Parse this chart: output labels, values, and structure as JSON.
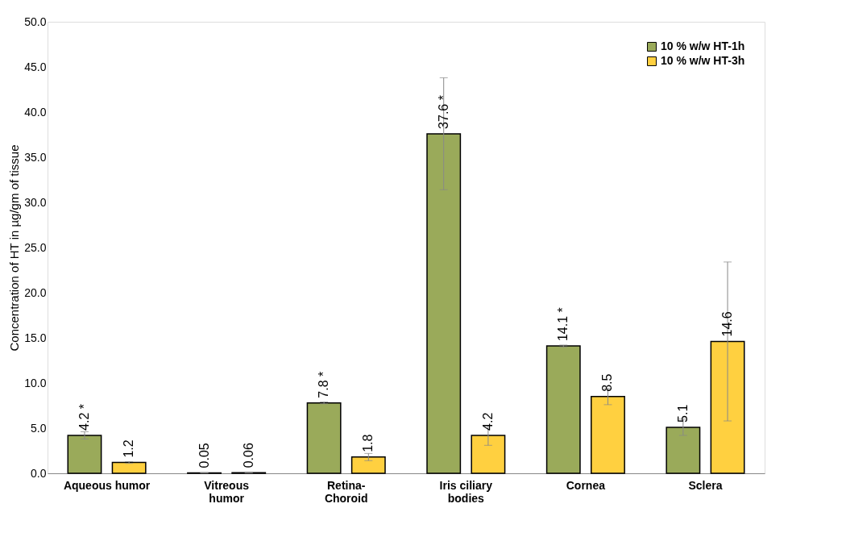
{
  "chart_data": {
    "type": "bar",
    "ylabel": "Concentration of HT in µg/gm of tissue",
    "categories": [
      "Aqueous humor",
      "Vitreous humor",
      "Retina-Choroid",
      "Iris ciliary bodies",
      "Cornea",
      "Sclera"
    ],
    "series": [
      {
        "name": "10 % w/w HT-1h",
        "color": "#9aaa5a",
        "values": [
          4.2,
          0.05,
          7.8,
          37.6,
          14.1,
          5.1
        ],
        "errors": [
          0.4,
          0,
          0.1,
          6.2,
          0.1,
          0.9
        ],
        "value_labels": [
          "4.2   *",
          "0.05",
          "7.8   *",
          "37.6   *",
          "14.1   *",
          "5.1"
        ]
      },
      {
        "name": "10 % w/w HT-3h",
        "color": "#ffd040",
        "values": [
          1.2,
          0.06,
          1.8,
          4.2,
          8.5,
          14.6
        ],
        "errors": [
          0.1,
          0,
          0.4,
          1.1,
          0.9,
          8.8
        ],
        "value_labels": [
          "1.2",
          "0.06",
          "1.8",
          "4.2",
          "8.5",
          "14.6"
        ]
      }
    ],
    "ylim": [
      0,
      50
    ],
    "yticks": [
      {
        "value": 0,
        "label": "0.0"
      },
      {
        "value": 5,
        "label": "5.0"
      },
      {
        "value": 10,
        "label": "10.0"
      },
      {
        "value": 15,
        "label": "15.0"
      },
      {
        "value": 20,
        "label": "20.0"
      },
      {
        "value": 25,
        "label": "25.0"
      },
      {
        "value": 30,
        "label": "30.0"
      },
      {
        "value": 35,
        "label": "35.0"
      },
      {
        "value": 40,
        "label": "40.0"
      },
      {
        "value": 45,
        "label": "45.0"
      },
      {
        "value": 50,
        "label": "50.0"
      }
    ],
    "grid": false,
    "legend": "top right"
  }
}
